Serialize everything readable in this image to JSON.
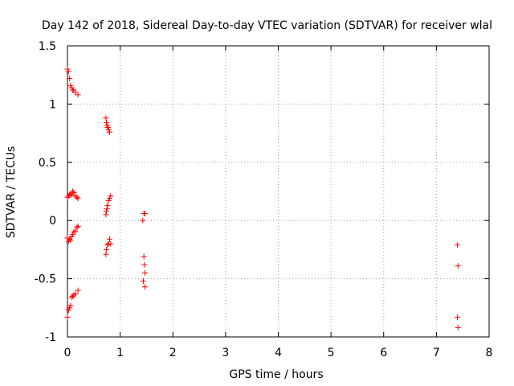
{
  "chart_data": {
    "type": "scatter",
    "title": "Day 142 of 2018, Sidereal Day-to-day VTEC variation (SDTVAR) for receiver wlal",
    "xlabel": "GPS time / hours",
    "ylabel": "SDTVAR / TECUs",
    "xlim": [
      0,
      8
    ],
    "ylim": [
      -1,
      1.5
    ],
    "xticks": [
      "0",
      "1",
      "2",
      "3",
      "4",
      "5",
      "6",
      "7",
      "8"
    ],
    "yticks": [
      "-1",
      "-0.5",
      "0",
      "0.5",
      "1",
      "1.5"
    ],
    "grid": true,
    "marker": "+",
    "color": "#ff0000",
    "x": [
      0.0,
      0.02,
      0.04,
      0.06,
      0.08,
      0.1,
      0.12,
      0.15,
      0.2,
      0.0,
      0.02,
      0.04,
      0.06,
      0.08,
      0.1,
      0.12,
      0.15,
      0.18,
      0.2,
      0.0,
      0.02,
      0.04,
      0.06,
      0.08,
      0.1,
      0.12,
      0.15,
      0.18,
      0.2,
      0.0,
      0.02,
      0.04,
      0.06,
      0.08,
      0.1,
      0.12,
      0.15,
      0.2,
      0.73,
      0.74,
      0.75,
      0.76,
      0.77,
      0.78,
      0.8,
      0.73,
      0.74,
      0.75,
      0.76,
      0.78,
      0.8,
      0.82,
      0.73,
      0.74,
      0.76,
      0.78,
      0.8,
      0.82,
      1.43,
      1.45,
      1.47,
      1.45,
      1.46,
      1.47,
      1.44,
      1.47,
      7.4,
      7.41,
      7.4,
      7.41
    ],
    "y": [
      1.3,
      1.28,
      1.22,
      1.16,
      1.14,
      1.12,
      1.12,
      1.1,
      1.08,
      0.2,
      0.21,
      0.22,
      0.23,
      0.22,
      0.25,
      0.24,
      0.21,
      0.2,
      0.19,
      -0.15,
      -0.18,
      -0.16,
      -0.17,
      -0.14,
      -0.12,
      -0.1,
      -0.09,
      -0.06,
      -0.05,
      -0.83,
      -0.77,
      -0.75,
      -0.73,
      -0.66,
      -0.65,
      -0.64,
      -0.63,
      -0.6,
      0.88,
      0.84,
      0.82,
      0.8,
      0.8,
      0.78,
      0.76,
      0.05,
      0.08,
      0.1,
      0.13,
      0.17,
      0.19,
      0.21,
      -0.29,
      -0.25,
      -0.21,
      -0.2,
      -0.16,
      -0.2,
      0.0,
      0.06,
      0.06,
      -0.31,
      -0.38,
      -0.45,
      -0.52,
      -0.57,
      -0.21,
      -0.39,
      -0.83,
      -0.92
    ]
  }
}
